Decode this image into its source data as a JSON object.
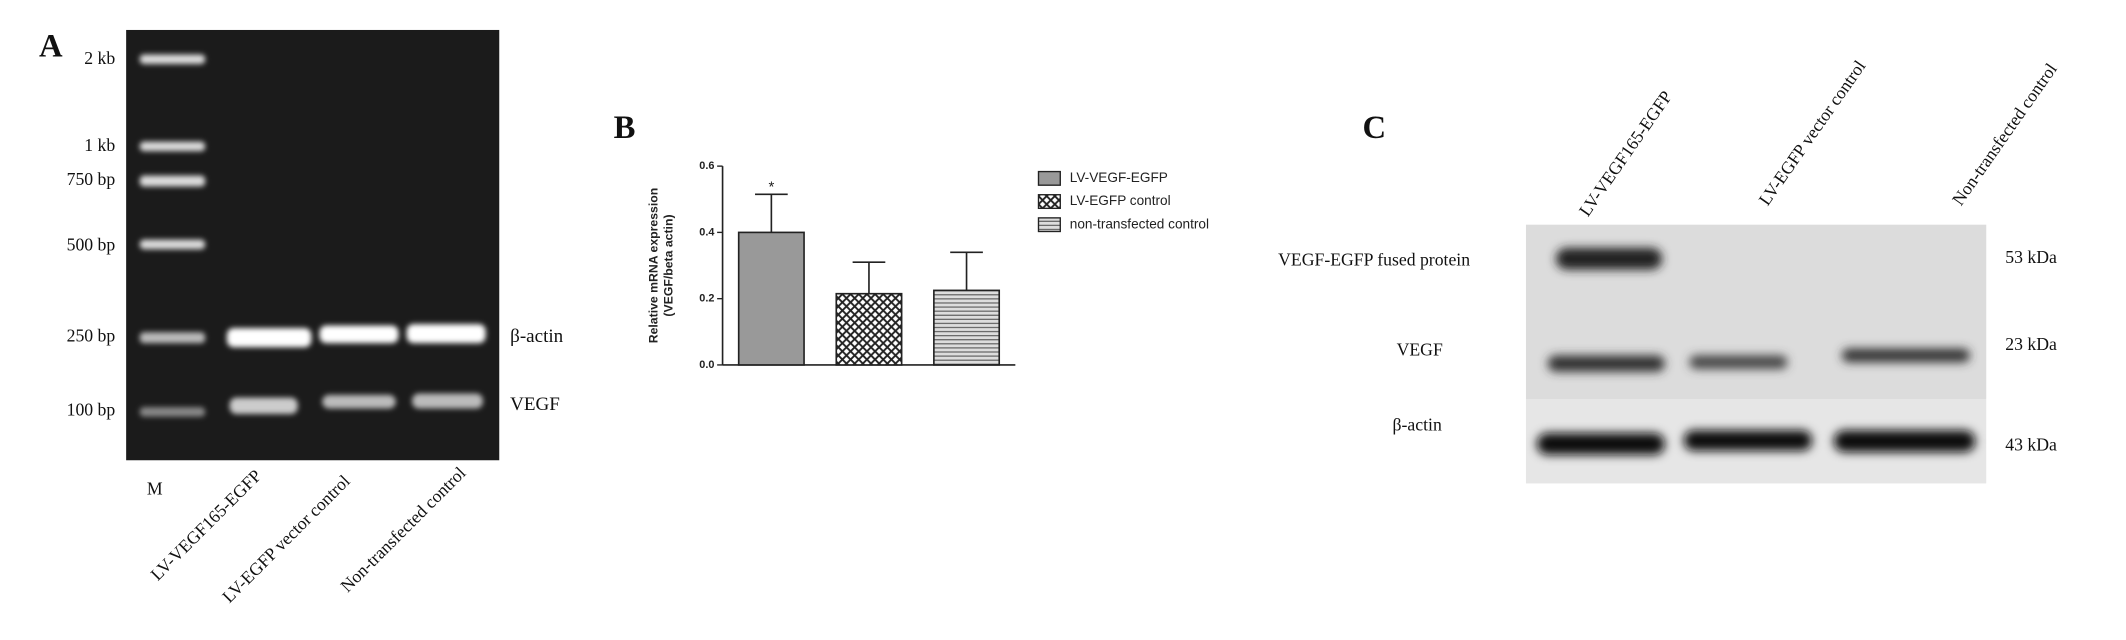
{
  "panel_a": {
    "label": "A",
    "ladder": [
      "2 kb",
      "1 kb",
      "750 bp",
      "500 bp",
      "250 bp",
      "100 bp"
    ],
    "bands": [
      "β-actin",
      "VEGF"
    ],
    "marker_lane": "M",
    "lanes": [
      "LV-VEGF165-EGFP",
      "LV-EGFP vector control",
      "Non-transfected control"
    ]
  },
  "chart_data": {
    "type": "bar",
    "label": "B",
    "ylabel": [
      "Relative mRNA expression",
      "(VEGF/beta actin)"
    ],
    "ylim": [
      0,
      0.6
    ],
    "yticks": [
      {
        "value": 0,
        "label": "0.0"
      },
      0.2,
      0.4,
      0.6
    ],
    "series": [
      {
        "name": "LV-VEGF-EGFP",
        "color": "#999999",
        "pattern": "solid",
        "values": [
          0.4
        ],
        "errors": [
          0.115
        ]
      },
      {
        "name": "LV-EGFP control",
        "color": "#222222",
        "pattern": "crosshatch",
        "values": [
          0.215
        ],
        "errors": [
          0.095
        ]
      },
      {
        "name": "non-transfected control",
        "color": "#444444",
        "pattern": "hlines",
        "values": [
          0.225
        ],
        "errors": [
          0.115
        ]
      }
    ],
    "annotations": [
      {
        "series": 0,
        "text": "*"
      }
    ]
  },
  "panel_c": {
    "label": "C",
    "lanes": [
      "LV-VEGF165-EGFP",
      "LV-EGFP vector control",
      "Non-transfected control"
    ],
    "bands": [
      "VEGF-EGFP  fused protein",
      "VEGF",
      "β-actin"
    ],
    "sizes": [
      "53 kDa",
      "23 kDa",
      "43 kDa"
    ]
  }
}
